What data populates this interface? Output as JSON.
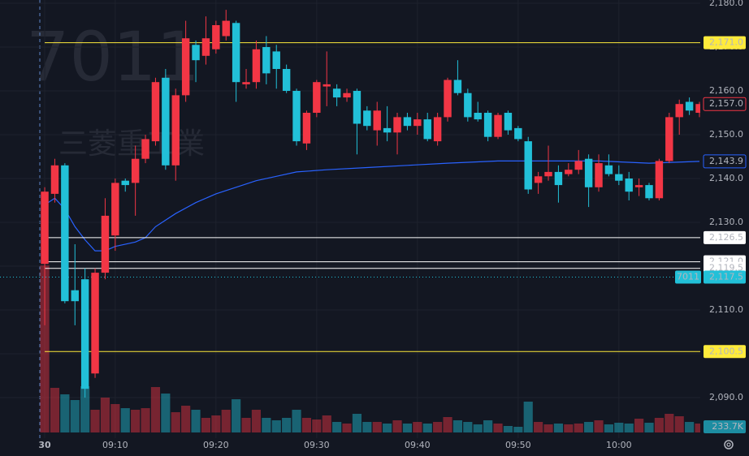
{
  "chart_data": {
    "type": "candlestick",
    "watermark": {
      "symbol": "7011",
      "name": "三菱重工業"
    },
    "up_color": "#f23645",
    "down_color": "#22c0d8",
    "xlim": [
      -4.44,
      65.08
    ],
    "xticks": [
      {
        "value": 0,
        "label": "30"
      },
      {
        "value": 7,
        "label": "09:10"
      },
      {
        "value": 17,
        "label": "09:20"
      },
      {
        "value": 27,
        "label": "09:30"
      },
      {
        "value": 37,
        "label": "09:40"
      },
      {
        "value": 47,
        "label": "09:50"
      },
      {
        "value": 57,
        "label": "10:00"
      }
    ],
    "ylim": [
      2080.74,
      2180.74
    ],
    "yticks": [
      {
        "value": 2180,
        "label": "2,180.0"
      },
      {
        "value": 2170,
        "label": "2,170.0"
      },
      {
        "value": 2160,
        "label": "2,160.0"
      },
      {
        "value": 2150,
        "label": "2,150.0"
      },
      {
        "value": 2140,
        "label": "2,140.0"
      },
      {
        "value": 2130,
        "label": "2,130.0"
      },
      {
        "value": 2120,
        "label": "2,120.0"
      },
      {
        "value": 2110,
        "label": "2,110.0"
      },
      {
        "value": 2100,
        "label": "2,100.0"
      },
      {
        "value": 2090,
        "label": "2,090.0"
      }
    ],
    "grid": true,
    "open": [
      2120.5,
      2136.5,
      2143,
      2114.5,
      2117,
      2095.5,
      2118.5,
      2127,
      2139.5,
      2139,
      2144.5,
      2148.5,
      2163,
      2143,
      2159,
      2170.5,
      2168,
      2169.5,
      2172.5,
      2175.5,
      2161.5,
      2162,
      2170,
      2169,
      2165,
      2160,
      2148,
      2155,
      2161,
      2160.5,
      2158.5,
      2160,
      2155.5,
      2151,
      2151.5,
      2150.5,
      2154,
      2152,
      2153.5,
      2148.5,
      2154,
      2162.5,
      2159.5,
      2155,
      2155,
      2149.5,
      2155,
      2151.5,
      2148.5,
      2139,
      2140.5,
      2141.5,
      2141,
      2142,
      2144.5,
      2138,
      2143,
      2141,
      2140,
      2138,
      2138.5,
      2135.5,
      2144,
      2154,
      2157.5,
      2155
    ],
    "high": [
      2138,
      2144.5,
      2143.5,
      2125,
      2119.5,
      2119.5,
      2135.5,
      2140,
      2140,
      2147.5,
      2150,
      2163,
      2165,
      2160.5,
      2176,
      2171.5,
      2177,
      2176,
      2178.5,
      2176,
      2165,
      2171.5,
      2172.5,
      2170.5,
      2166,
      2160.5,
      2155.5,
      2162.5,
      2169,
      2161.5,
      2160.5,
      2160.5,
      2156.5,
      2157.5,
      2156.5,
      2155,
      2155,
      2155,
      2155,
      2155,
      2163,
      2167,
      2160.5,
      2157.5,
      2155.5,
      2155,
      2155.5,
      2152,
      2149.5,
      2141.5,
      2147.5,
      2143,
      2143.5,
      2146.5,
      2145.5,
      2145.5,
      2145.5,
      2143,
      2141.5,
      2140,
      2139,
      2144.5,
      2155,
      2158,
      2158.5,
      2157.5
    ],
    "low": [
      2106.5,
      2134.5,
      2111.5,
      2106.5,
      2090,
      2094.5,
      2117,
      2123.5,
      2137,
      2131.5,
      2143.5,
      2147.5,
      2142,
      2139.5,
      2157.5,
      2162,
      2166,
      2168.5,
      2171.5,
      2157.5,
      2160.5,
      2160.5,
      2161.5,
      2160.5,
      2159.5,
      2147.5,
      2146.5,
      2154,
      2156.5,
      2156.5,
      2157.5,
      2145.5,
      2151,
      2147.5,
      2148.5,
      2145.5,
      2151,
      2150,
      2148.5,
      2147.5,
      2153,
      2159,
      2153,
      2153,
      2148.5,
      2149,
      2150,
      2148.5,
      2136.5,
      2136.5,
      2139.5,
      2134.5,
      2140.5,
      2141,
      2133.5,
      2137,
      2140.5,
      2138.5,
      2135,
      2136,
      2135,
      2135,
      2143.5,
      2150,
      2154.5,
      2154
    ],
    "close": [
      2137,
      2143,
      2112,
      2112,
      2092,
      2118.5,
      2131.5,
      2139,
      2138.5,
      2144.5,
      2149,
      2162,
      2143,
      2159,
      2172,
      2167,
      2172,
      2175,
      2176,
      2162,
      2162,
      2169.5,
      2164,
      2165,
      2160,
      2148.5,
      2155,
      2162,
      2161.5,
      2158.5,
      2159.5,
      2152.5,
      2152,
      2155.5,
      2150.5,
      2154,
      2152,
      2153.5,
      2149,
      2154,
      2162.5,
      2159.5,
      2154,
      2153.5,
      2149.5,
      2154.5,
      2151,
      2149,
      2137.5,
      2140.5,
      2141.5,
      2138.5,
      2142,
      2144,
      2138,
      2143.5,
      2141,
      2139.5,
      2137,
      2138.5,
      2135.5,
      2144,
      2154,
      2157,
      2155.5,
      2157
    ],
    "last_price_label": "2,157.0",
    "volume": {
      "vlim": [
        0,
        4400
      ],
      "values": [
        4377,
        1169,
        999,
        850,
        1211,
        595,
        914,
        744,
        637,
        595,
        637,
        1190,
        1020,
        531,
        701,
        595,
        383,
        446,
        595,
        871,
        383,
        595,
        383,
        319,
        383,
        595,
        383,
        340,
        446,
        276,
        234,
        489,
        276,
        276,
        234,
        319,
        234,
        276,
        234,
        276,
        404,
        319,
        276,
        212,
        319,
        234,
        170,
        149,
        808,
        276,
        212,
        234,
        212,
        234,
        276,
        319,
        212,
        255,
        234,
        361,
        255,
        383,
        489,
        425,
        276,
        233.7
      ],
      "last_label": "233.7K"
    },
    "vwap": {
      "color": "#2962ff",
      "x": [
        0,
        1,
        2,
        3,
        4,
        5,
        6,
        7,
        9,
        10,
        11,
        13,
        15,
        17,
        19,
        21,
        23,
        25,
        28,
        32,
        36,
        40,
        45,
        50,
        55,
        60,
        65
      ],
      "values": [
        2134,
        2135.5,
        2133,
        2129,
        2126,
        2123.5,
        2123.5,
        2124.5,
        2125.5,
        2126.5,
        2129,
        2132,
        2134.5,
        2136.5,
        2138,
        2139.5,
        2140.5,
        2141.5,
        2142,
        2142.5,
        2143,
        2143.5,
        2144,
        2144,
        2144,
        2143.5,
        2143.9
      ],
      "last_label": "2,143.9"
    },
    "levels": [
      {
        "value": 2171.0,
        "label": "2,171.0",
        "color": "#ffeb3b"
      },
      {
        "value": 2126.5,
        "label": "2,126.5",
        "color": "#ffffff"
      },
      {
        "value": 2121.0,
        "label": "2,121.0",
        "color": "#ffffff"
      },
      {
        "value": 2119.5,
        "label": "2,119.5",
        "color": "#ffffff"
      },
      {
        "value": 2100.5,
        "label": "2,100.5",
        "color": "#ffeb3b"
      }
    ],
    "price_line": {
      "value": 2117.5,
      "label": "2,117.5",
      "symbol": "7011",
      "color": "#22c0d8"
    }
  }
}
